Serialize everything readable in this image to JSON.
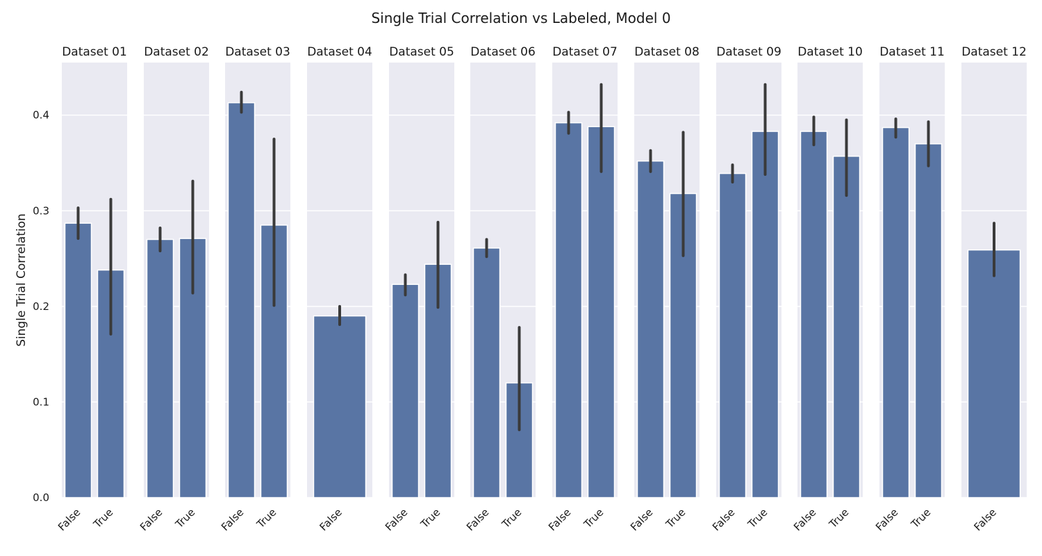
{
  "chart_data": {
    "type": "bar",
    "title": "Single Trial Correlation vs Labeled, Model 0",
    "xlabel": "",
    "ylabel": "Single Trial Correlation",
    "ylim": [
      0,
      0.455
    ],
    "yticks": [
      "0.0",
      "0.1",
      "0.2",
      "0.3",
      "0.4"
    ],
    "ytick_values": [
      0.0,
      0.1,
      0.2,
      0.3,
      0.4
    ],
    "grid": true,
    "legend": "none",
    "colors": {
      "bar": "#5975a4",
      "error": "#3a3a3a",
      "panel_bg": "#eaeaf2",
      "grid": "#ffffff"
    },
    "panels": [
      {
        "title": "Dataset 01",
        "categories": [
          "False",
          "True"
        ],
        "values": [
          0.287,
          0.238
        ],
        "err_low": [
          0.271,
          0.171
        ],
        "err_high": [
          0.303,
          0.312
        ]
      },
      {
        "title": "Dataset 02",
        "categories": [
          "False",
          "True"
        ],
        "values": [
          0.27,
          0.271
        ],
        "err_low": [
          0.258,
          0.214
        ],
        "err_high": [
          0.282,
          0.331
        ]
      },
      {
        "title": "Dataset 03",
        "categories": [
          "False",
          "True"
        ],
        "values": [
          0.413,
          0.285
        ],
        "err_low": [
          0.403,
          0.201
        ],
        "err_high": [
          0.424,
          0.375
        ]
      },
      {
        "title": "Dataset 04",
        "categories": [
          "False"
        ],
        "values": [
          0.19
        ],
        "err_low": [
          0.181
        ],
        "err_high": [
          0.2
        ]
      },
      {
        "title": "Dataset 05",
        "categories": [
          "False",
          "True"
        ],
        "values": [
          0.223,
          0.244
        ],
        "err_low": [
          0.212,
          0.199
        ],
        "err_high": [
          0.233,
          0.288
        ]
      },
      {
        "title": "Dataset 06",
        "categories": [
          "False",
          "True"
        ],
        "values": [
          0.261,
          0.12
        ],
        "err_low": [
          0.252,
          0.071
        ],
        "err_high": [
          0.27,
          0.178
        ]
      },
      {
        "title": "Dataset 07",
        "categories": [
          "False",
          "True"
        ],
        "values": [
          0.392,
          0.388
        ],
        "err_low": [
          0.381,
          0.341
        ],
        "err_high": [
          0.403,
          0.432
        ]
      },
      {
        "title": "Dataset 08",
        "categories": [
          "False",
          "True"
        ],
        "values": [
          0.352,
          0.318
        ],
        "err_low": [
          0.341,
          0.253
        ],
        "err_high": [
          0.363,
          0.382
        ]
      },
      {
        "title": "Dataset 09",
        "categories": [
          "False",
          "True"
        ],
        "values": [
          0.339,
          0.383
        ],
        "err_low": [
          0.33,
          0.338
        ],
        "err_high": [
          0.348,
          0.432
        ]
      },
      {
        "title": "Dataset 10",
        "categories": [
          "False",
          "True"
        ],
        "values": [
          0.383,
          0.357
        ],
        "err_low": [
          0.369,
          0.316
        ],
        "err_high": [
          0.398,
          0.395
        ]
      },
      {
        "title": "Dataset 11",
        "categories": [
          "False",
          "True"
        ],
        "values": [
          0.387,
          0.37
        ],
        "err_low": [
          0.377,
          0.347
        ],
        "err_high": [
          0.396,
          0.393
        ]
      },
      {
        "title": "Dataset 12",
        "categories": [
          "False"
        ],
        "values": [
          0.259
        ],
        "err_low": [
          0.232
        ],
        "err_high": [
          0.287
        ]
      }
    ]
  }
}
